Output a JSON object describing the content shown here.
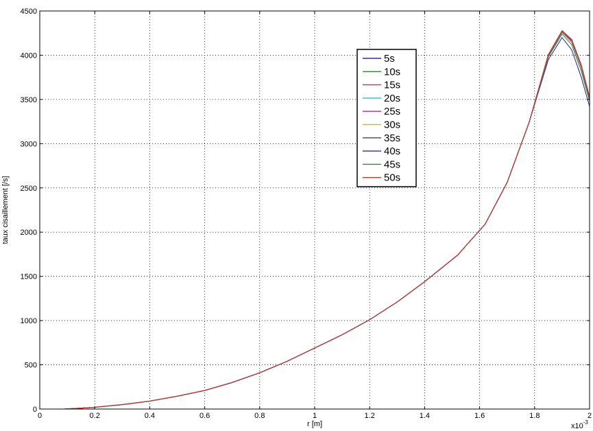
{
  "chart_data": {
    "type": "line",
    "xlabel": "r [m]",
    "ylabel": "taux cisaillement [/s]",
    "x_multiplier_label": "x10",
    "x_multiplier_exponent": "-3",
    "xlim": [
      0,
      2
    ],
    "ylim": [
      0,
      4500
    ],
    "x_ticks": [
      0,
      0.2,
      0.4,
      0.6,
      0.8,
      1,
      1.2,
      1.4,
      1.6,
      1.8,
      2
    ],
    "x_tick_labels": [
      "0",
      "0.2",
      "0.4",
      "0.6",
      "0.8",
      "1",
      "1.2",
      "1.4",
      "1.6",
      "1.8",
      "2"
    ],
    "y_ticks": [
      0,
      500,
      1000,
      1500,
      2000,
      2500,
      3000,
      3500,
      4000,
      4500
    ],
    "y_tick_labels": [
      "0",
      "500",
      "1000",
      "1500",
      "2000",
      "2500",
      "3000",
      "3500",
      "4000",
      "4500"
    ],
    "grid": true,
    "legend_position": "top-right",
    "x": [
      0.09,
      0.15,
      0.2,
      0.3,
      0.4,
      0.5,
      0.6,
      0.7,
      0.8,
      0.9,
      1.0,
      1.1,
      1.2,
      1.3,
      1.4,
      1.52,
      1.62,
      1.7,
      1.78,
      1.85,
      1.9,
      1.935,
      1.97,
      2.0
    ],
    "series": [
      {
        "name": "5s",
        "color": "#2e2ea0",
        "values": [
          0,
          10,
          20,
          50,
          90,
          145,
          210,
          300,
          410,
          540,
          690,
          840,
          1010,
          1210,
          1440,
          1740,
          2090,
          2560,
          3240,
          3950,
          4200,
          4060,
          3750,
          3420
        ]
      },
      {
        "name": "10s",
        "color": "#2e8b2e",
        "values": [
          0,
          10,
          20,
          50,
          90,
          145,
          210,
          300,
          410,
          540,
          690,
          840,
          1010,
          1210,
          1440,
          1740,
          2090,
          2560,
          3240,
          3980,
          4240,
          4120,
          3820,
          3480
        ]
      },
      {
        "name": "15s",
        "color": "#cc3333",
        "values": [
          0,
          10,
          20,
          50,
          90,
          145,
          210,
          300,
          410,
          540,
          690,
          840,
          1010,
          1210,
          1440,
          1740,
          2090,
          2560,
          3240,
          3990,
          4260,
          4150,
          3860,
          3500
        ]
      },
      {
        "name": "20s",
        "color": "#33b5c0",
        "values": [
          0,
          10,
          20,
          50,
          90,
          145,
          210,
          300,
          410,
          540,
          690,
          840,
          1010,
          1210,
          1440,
          1740,
          2090,
          2560,
          3240,
          3995,
          4265,
          4160,
          3870,
          3510
        ]
      },
      {
        "name": "25s",
        "color": "#a030b0",
        "values": [
          0,
          10,
          20,
          50,
          90,
          145,
          210,
          300,
          410,
          540,
          690,
          840,
          1010,
          1210,
          1440,
          1740,
          2090,
          2560,
          3240,
          3998,
          4268,
          4165,
          3875,
          3515
        ]
      },
      {
        "name": "30s",
        "color": "#c8c020",
        "values": [
          0,
          10,
          20,
          50,
          90,
          145,
          210,
          300,
          410,
          540,
          690,
          840,
          1010,
          1210,
          1440,
          1740,
          2090,
          2560,
          3240,
          4000,
          4270,
          4170,
          3880,
          3520
        ]
      },
      {
        "name": "35s",
        "color": "#444444",
        "values": [
          0,
          10,
          20,
          50,
          90,
          145,
          210,
          300,
          410,
          540,
          690,
          840,
          1010,
          1210,
          1440,
          1740,
          2090,
          2560,
          3240,
          4002,
          4272,
          4172,
          3882,
          3522
        ]
      },
      {
        "name": "40s",
        "color": "#2e2ea0",
        "values": [
          0,
          10,
          20,
          50,
          90,
          145,
          210,
          300,
          410,
          540,
          690,
          840,
          1010,
          1210,
          1440,
          1740,
          2090,
          2560,
          3240,
          4004,
          4274,
          4174,
          3884,
          3524
        ]
      },
      {
        "name": "45s",
        "color": "#2e8b2e",
        "values": [
          0,
          10,
          20,
          50,
          90,
          145,
          210,
          300,
          410,
          540,
          690,
          840,
          1010,
          1210,
          1440,
          1740,
          2090,
          2560,
          3240,
          4006,
          4276,
          4176,
          3886,
          3526
        ]
      },
      {
        "name": "50s",
        "color": "#cc3333",
        "values": [
          0,
          10,
          20,
          50,
          90,
          145,
          210,
          300,
          410,
          540,
          690,
          840,
          1010,
          1210,
          1440,
          1740,
          2090,
          2560,
          3240,
          4008,
          4278,
          4178,
          3888,
          3528
        ]
      }
    ]
  }
}
